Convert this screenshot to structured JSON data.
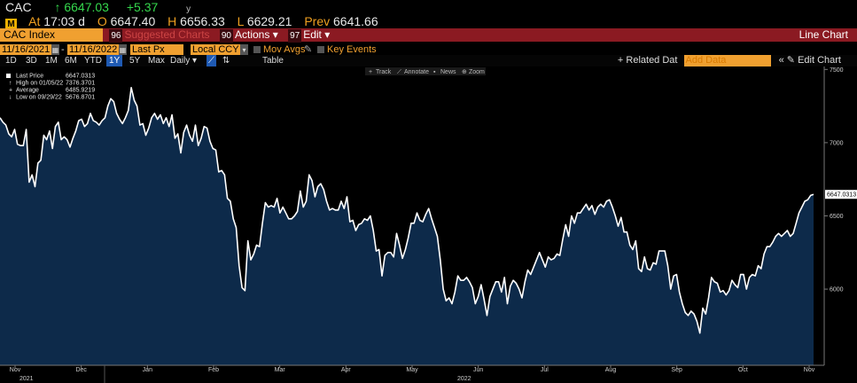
{
  "ticker": {
    "symbol": "CAC",
    "arrow": "↑",
    "last": "6647.03",
    "change": "+5.37",
    "flag": "y"
  },
  "quote": {
    "at_label": "At",
    "time": "17:03 d",
    "open_label": "O",
    "open": "6647.40",
    "high_label": "H",
    "high": "6656.33",
    "low_label": "L",
    "low": "6629.21",
    "prev_label": "Prev",
    "prev": "6641.66"
  },
  "command_bar": {
    "security": "CAC Index",
    "suggested_num": "96",
    "suggested": "Suggested Charts",
    "actions_num": "90",
    "actions": "Actions",
    "edit_num": "97",
    "edit": "Edit",
    "title": "Line Chart"
  },
  "controls": {
    "start_date": "11/16/2021",
    "end_date": "11/16/2022",
    "field": "Last Px",
    "currency": "Local CCY",
    "mov_avgs": "Mov Avgs",
    "key_events": "Key Events"
  },
  "periods": {
    "items": [
      "1D",
      "3D",
      "1M",
      "6M",
      "YTD",
      "1Y",
      "5Y",
      "Max"
    ],
    "active": "1Y",
    "frequency": "Daily",
    "table": "Table",
    "related": "+ Related Dat",
    "add_data_placeholder": "Add Data",
    "edit_chart": "Edit Chart"
  },
  "chart_tools": {
    "track": "Track",
    "annotate": "Annotate",
    "news": "News",
    "zoom": "Zoom"
  },
  "legend": {
    "rows": [
      {
        "label": "Last Price",
        "value": "6647.0313"
      },
      {
        "label": "High on 01/05/22",
        "value": "7376.3701"
      },
      {
        "label": "Average",
        "value": "6485.9219"
      },
      {
        "label": "Low on 09/29/22",
        "value": "5676.8701"
      }
    ]
  },
  "colors": {
    "line": "#ffffff",
    "fill": "#0d2a4a",
    "accent": "#f0a030",
    "bar": "#8b1a22",
    "up": "#35d84d"
  },
  "chart_data": {
    "type": "area",
    "x_start": "2021-11-16",
    "x_end": "2022-11-16",
    "ylim": [
      5480,
      7520
    ],
    "y_ticks": [
      6000,
      6500,
      7000,
      7500
    ],
    "last_label": "6647.0313",
    "month_ticks": [
      "Nov",
      "Dec",
      "Jan",
      "Feb",
      "Mar",
      "Apr",
      "May",
      "Jun",
      "Jul",
      "Aug",
      "Sep",
      "Oct",
      "Nov"
    ],
    "year_labels": [
      "2021",
      "2022"
    ],
    "grid": false,
    "legend_position": "top-left",
    "values": [
      7170,
      7140,
      7120,
      7060,
      7040,
      7090,
      6990,
      6980,
      6980,
      7090,
      6730,
      6780,
      6700,
      6860,
      6880,
      7050,
      7020,
      7080,
      6960,
      7110,
      7140,
      7020,
      7040,
      7020,
      6970,
      7030,
      7080,
      7150,
      7160,
      7110,
      7130,
      7200,
      7150,
      7140,
      7120,
      7150,
      7170,
      7250,
      7300,
      7280,
      7200,
      7160,
      7130,
      7170,
      7220,
      7376,
      7290,
      7250,
      7120,
      7130,
      7050,
      7100,
      7170,
      7200,
      7160,
      7190,
      7130,
      7170,
      7110,
      7190,
      7030,
      7060,
      6930,
      7070,
      7120,
      7050,
      7010,
      7120,
      6980,
      7030,
      7110,
      7100,
      7010,
      6960,
      6950,
      6800,
      6810,
      6780,
      6620,
      6600,
      6480,
      6420,
      6160,
      6010,
      5990,
      6330,
      6200,
      6240,
      6300,
      6290,
      6450,
      6590,
      6560,
      6570,
      6560,
      6620,
      6520,
      6560,
      6520,
      6480,
      6480,
      6500,
      6530,
      6670,
      6560,
      6600,
      6780,
      6740,
      6630,
      6700,
      6720,
      6680,
      6600,
      6540,
      6550,
      6540,
      6540,
      6600,
      6550,
      6630,
      6460,
      6470,
      6400,
      6440,
      6450,
      6480,
      6470,
      6500,
      6400,
      6260,
      6270,
      6090,
      6230,
      6250,
      6250,
      6220,
      6380,
      6300,
      6210,
      6270,
      6350,
      6450,
      6450,
      6520,
      6470,
      6460,
      6510,
      6550,
      6480,
      6420,
      6360,
      6200,
      6000,
      5920,
      5940,
      5900,
      5980,
      6090,
      6060,
      6060,
      6080,
      6050,
      6010,
      5900,
      5950,
      6030,
      5930,
      5820,
      5950,
      6000,
      6050,
      6050,
      5980,
      6080,
      5900,
      6020,
      6060,
      6040,
      6000,
      5940,
      6050,
      6130,
      6100,
      6150,
      6200,
      6250,
      6200,
      6150,
      6220,
      6200,
      6210,
      6240,
      6230,
      6340,
      6440,
      6360,
      6500,
      6450,
      6520,
      6520,
      6550,
      6580,
      6540,
      6570,
      6510,
      6560,
      6580,
      6560,
      6600,
      6610,
      6560,
      6500,
      6430,
      6490,
      6390,
      6390,
      6300,
      6270,
      6330,
      6140,
      6120,
      6220,
      6140,
      6130,
      6180,
      6170,
      6260,
      6260,
      6260,
      6160,
      6000,
      6090,
      6100,
      5980,
      5900,
      5840,
      5820,
      5850,
      5830,
      5780,
      5700,
      5870,
      5830,
      5940,
      6080,
      6050,
      6040,
      5980,
      5990,
      5960,
      5990,
      6060,
      6030,
      6010,
      6100,
      6100,
      6000,
      6080,
      6100,
      6090,
      6160,
      6140,
      6240,
      6290,
      6290,
      6320,
      6360,
      6380,
      6360,
      6380,
      6400,
      6360,
      6380,
      6450,
      6520,
      6560,
      6600,
      6610,
      6640,
      6647
    ]
  }
}
